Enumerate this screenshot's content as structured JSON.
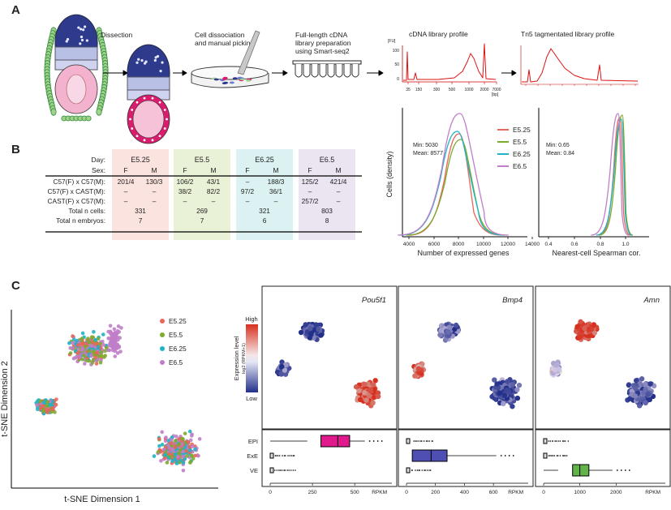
{
  "panelA": {
    "label": "A",
    "dissection": "Dissection",
    "dissociation": [
      "Cell dissociation",
      "and manual picking"
    ],
    "cdna_prep": [
      "Full-length cDNA",
      "library preparation",
      "using Smart-seq2"
    ],
    "cdna_profile_title": "cDNA library profile",
    "tn5_profile_title": "Tn5 tagmentated library profile",
    "fu_label": "[FU]",
    "bp_label": "[bp]",
    "cdna_y_ticks": [
      "100",
      "50",
      "0"
    ],
    "cdna_x_ticks": [
      "35",
      "150",
      "300",
      "500",
      "1000",
      "2000",
      "7000"
    ]
  },
  "panelB": {
    "label": "B",
    "table": {
      "day_label": "Day:",
      "sex_label": "Sex:",
      "stages": [
        "E5.25",
        "E5.5",
        "E6.25",
        "E6.5"
      ],
      "stage_colors": [
        "#fbe3df",
        "#e9f1d6",
        "#dcf2f2",
        "#ebe4f1"
      ],
      "sexes": [
        "F",
        "M"
      ],
      "rows": [
        {
          "label": "C57(F) x C57(M):",
          "cells": [
            "201/4",
            "130/3",
            "106/2",
            "43/1",
            "–",
            "188/3",
            "125/2",
            "421/4"
          ]
        },
        {
          "label": "C57(F) x CAST(M):",
          "cells": [
            "–",
            "–",
            "38/2",
            "82/2",
            "97/2",
            "36/1",
            "–",
            "–"
          ]
        },
        {
          "label": "CAST(F) x C57(M):",
          "cells": [
            "–",
            "–",
            "–",
            "–",
            "–",
            "–",
            "257/2",
            "–"
          ]
        }
      ],
      "totals": [
        {
          "label": "Total n cells:",
          "values": [
            "331",
            "269",
            "321",
            "803"
          ]
        },
        {
          "label": "Total n embryos:",
          "values": [
            "7",
            "7",
            "6",
            "8"
          ]
        }
      ]
    },
    "density": {
      "ylabel": "Cells (density)",
      "left_xlabel": "Number of expressed genes",
      "right_xlabel": "Nearest-cell Spearman cor.",
      "left_ticks": [
        "4000",
        "6000",
        "8000",
        "10000",
        "12000",
        "14000"
      ],
      "right_ticks": [
        "0.4",
        "0.6",
        "0.8",
        "1.0"
      ],
      "left_stats": [
        "Min: 5030",
        "Mean: 8577"
      ],
      "right_stats": [
        "Min: 0.65",
        "Mean: 0.84"
      ],
      "legend": [
        {
          "name": "E5.25",
          "color": "#e8665a"
        },
        {
          "name": "E5.5",
          "color": "#7cab2d"
        },
        {
          "name": "E6.25",
          "color": "#1fb3c6"
        },
        {
          "name": "E6.5",
          "color": "#c07ec8"
        }
      ]
    }
  },
  "panelC": {
    "label": "C",
    "tsne_x": "t-SNE Dimension 1",
    "tsne_y": "t-SNE Dimension 2",
    "tsne_legend": [
      {
        "name": "E5.25",
        "color": "#e8665a"
      },
      {
        "name": "E5.5",
        "color": "#7cab2d"
      },
      {
        "name": "E6.25",
        "color": "#1fb3c6"
      },
      {
        "name": "E6.5",
        "color": "#c07ec8"
      }
    ],
    "colorbar": {
      "high": "High",
      "low": "Low",
      "title1": "Expression level",
      "title2": "log2 (RPKM+1)"
    },
    "genes": [
      "Pou5f1",
      "Bmp4",
      "Amn"
    ],
    "box_categories": [
      "EPI",
      "ExE",
      "VE"
    ],
    "box_unit": "RPKM",
    "box_ticks": [
      [
        "0",
        "250",
        "500"
      ],
      [
        "0",
        "200",
        "400",
        "600"
      ],
      [
        "0",
        "1000",
        "2000"
      ]
    ],
    "box_colors": [
      "#e0198c",
      "#4f4fb3",
      "#62b34a"
    ]
  }
}
